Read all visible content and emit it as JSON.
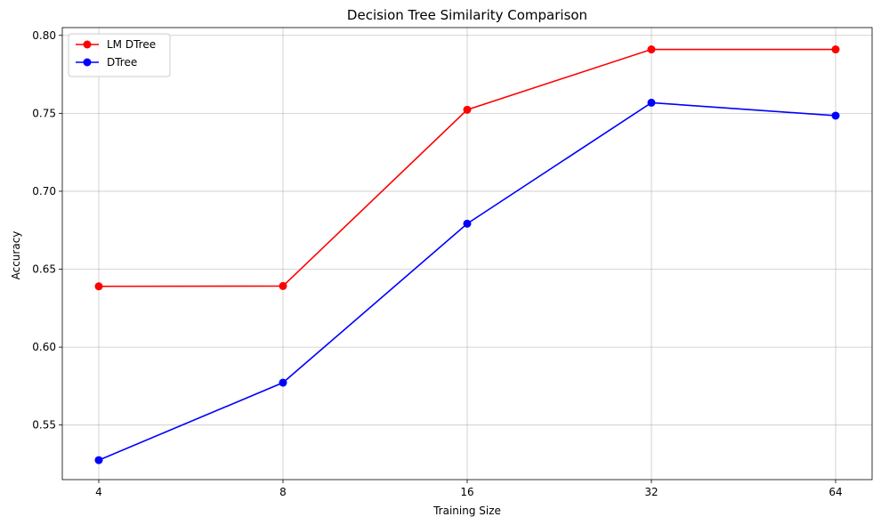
{
  "chart_data": {
    "type": "line",
    "title": "Decision Tree Similarity Comparison",
    "xlabel": "Training Size",
    "ylabel": "Accuracy",
    "categories": [
      "4",
      "8",
      "16",
      "32",
      "64"
    ],
    "x_scale": "log2",
    "ylim": [
      0.515,
      0.805
    ],
    "yticks": [
      "0.55",
      "0.60",
      "0.65",
      "0.70",
      "0.75",
      "0.80"
    ],
    "grid": true,
    "legend_position": "upper-left",
    "series": [
      {
        "name": "LM DTree",
        "color": "#ff0000",
        "marker": "circle",
        "values": [
          0.639,
          0.6392,
          0.7523,
          0.791,
          0.791
        ]
      },
      {
        "name": "DTree",
        "color": "#0000ff",
        "marker": "circle",
        "values": [
          0.5275,
          0.5772,
          0.6792,
          0.7568,
          0.7485
        ]
      }
    ]
  }
}
